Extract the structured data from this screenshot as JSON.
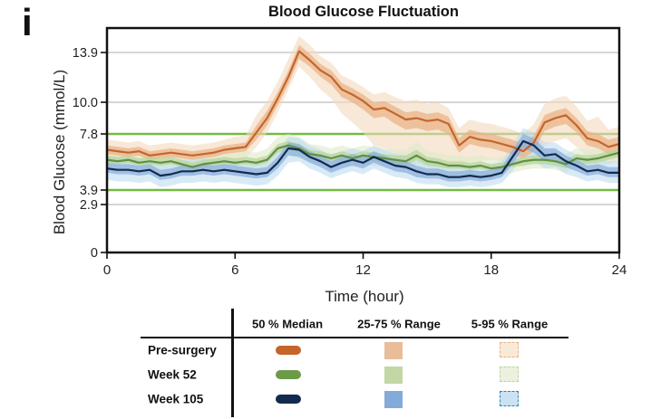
{
  "panel_label": "i",
  "chart_data": {
    "type": "line",
    "title": "Blood Glucose Fluctuation",
    "xlabel": "Time (hour)",
    "ylabel": "Blood Glucose (mmol/L)",
    "xlim": [
      0,
      24
    ],
    "x_ticks": [
      0,
      6,
      12,
      18,
      24
    ],
    "x_tick_labels": [
      "0",
      "6",
      "12",
      "18",
      "24"
    ],
    "y_ticks": [
      13.9,
      10.0,
      7.8,
      3.9,
      2.9,
      0
    ],
    "y_tick_labels": [
      "13.9",
      "10.0",
      "7.8",
      "3.9",
      "2.9",
      "0"
    ],
    "grid_values": [
      13.9,
      10.0,
      2.9
    ],
    "grid_color": "#c8c8c8",
    "target_lines": {
      "values": [
        7.8,
        3.9
      ],
      "color": "#72bb42"
    },
    "frame_color": "#111111",
    "x": [
      0,
      0.5,
      1,
      1.5,
      2,
      2.5,
      3,
      3.5,
      4,
      4.5,
      5,
      5.5,
      6,
      6.5,
      7,
      7.5,
      8,
      8.5,
      9,
      9.5,
      10,
      10.5,
      11,
      11.5,
      12,
      12.5,
      13,
      13.5,
      14,
      14.5,
      15,
      15.5,
      16,
      16.5,
      17,
      17.5,
      18,
      18.5,
      19,
      19.5,
      20,
      20.5,
      21,
      21.5,
      22,
      22.5,
      23,
      23.5,
      24
    ],
    "series": [
      {
        "name": "Pre-surgery",
        "line_color": "#c4662a",
        "band25_color": "#eab287",
        "band5_color": "#f4d9bd",
        "median": [
          6.7,
          6.6,
          6.5,
          6.6,
          6.3,
          6.4,
          6.5,
          6.4,
          6.3,
          6.4,
          6.5,
          6.7,
          6.8,
          6.9,
          7.9,
          8.9,
          10.3,
          12.0,
          14.0,
          13.3,
          12.5,
          12.0,
          11.0,
          10.6,
          10.1,
          9.5,
          9.6,
          9.2,
          8.8,
          8.9,
          8.7,
          8.8,
          8.5,
          7.0,
          7.6,
          7.4,
          7.3,
          7.1,
          6.9,
          6.6,
          7.2,
          8.6,
          8.9,
          9.1,
          8.4,
          7.5,
          7.3,
          6.9,
          7.1
        ],
        "p25": [
          6.4,
          6.3,
          6.2,
          6.3,
          6.0,
          6.1,
          6.2,
          6.1,
          6.0,
          6.1,
          6.2,
          6.4,
          6.5,
          6.6,
          7.4,
          8.4,
          9.8,
          11.4,
          13.4,
          12.8,
          12.0,
          11.4,
          10.4,
          10.0,
          9.5,
          8.9,
          9.0,
          8.5,
          8.1,
          8.2,
          8.0,
          8.1,
          7.8,
          6.5,
          7.1,
          6.9,
          6.8,
          6.6,
          6.4,
          6.1,
          6.6,
          8.0,
          8.3,
          8.5,
          7.9,
          7.0,
          6.8,
          6.4,
          6.6
        ],
        "p75": [
          7.0,
          6.9,
          6.8,
          6.9,
          6.6,
          6.7,
          6.8,
          6.7,
          6.6,
          6.7,
          6.8,
          7.0,
          7.1,
          7.2,
          8.4,
          9.4,
          10.8,
          12.5,
          14.5,
          13.8,
          13.0,
          12.5,
          11.5,
          11.1,
          10.6,
          10.0,
          10.1,
          9.7,
          9.3,
          9.4,
          9.2,
          9.3,
          9.0,
          7.5,
          8.1,
          7.9,
          7.8,
          7.6,
          7.4,
          7.1,
          7.7,
          9.1,
          9.4,
          9.6,
          8.9,
          8.0,
          7.8,
          7.4,
          7.6
        ],
        "p5": [
          5.9,
          5.8,
          5.7,
          5.8,
          5.5,
          5.6,
          5.7,
          5.6,
          5.5,
          5.6,
          5.7,
          5.9,
          6.0,
          6.1,
          6.9,
          7.9,
          9.3,
          11.0,
          12.8,
          12.0,
          11.0,
          10.3,
          9.2,
          8.6,
          7.9,
          7.0,
          6.8,
          6.3,
          5.9,
          5.8,
          5.6,
          5.6,
          5.5,
          5.5,
          5.9,
          5.9,
          6.0,
          5.9,
          5.7,
          5.5,
          5.9,
          7.0,
          7.3,
          7.5,
          6.9,
          6.2,
          6.0,
          5.7,
          5.9
        ],
        "p95": [
          7.4,
          7.3,
          7.2,
          7.3,
          7.0,
          7.1,
          7.2,
          7.1,
          7.0,
          7.1,
          7.2,
          7.4,
          7.6,
          7.7,
          9.1,
          10.1,
          11.6,
          13.4,
          15.2,
          14.5,
          13.6,
          13.1,
          12.1,
          11.7,
          11.2,
          10.6,
          10.8,
          10.4,
          10.1,
          10.2,
          9.9,
          10.0,
          9.6,
          8.2,
          8.8,
          8.6,
          8.5,
          8.3,
          8.1,
          7.8,
          8.5,
          9.9,
          10.3,
          10.5,
          9.7,
          8.7,
          9.0,
          8.1,
          8.3
        ]
      },
      {
        "name": "Week 52",
        "line_color": "#5e9142",
        "band25_color": "#b9d49b",
        "band5_color": "#deebc9",
        "median": [
          6.0,
          5.9,
          6.0,
          5.8,
          5.9,
          5.8,
          5.9,
          5.7,
          5.5,
          5.7,
          5.8,
          5.9,
          5.8,
          5.9,
          5.8,
          6.0,
          6.8,
          7.0,
          6.8,
          6.4,
          6.3,
          6.1,
          6.3,
          6.1,
          6.3,
          6.2,
          6.1,
          6.0,
          5.9,
          6.3,
          5.9,
          5.8,
          5.6,
          5.6,
          5.5,
          5.6,
          5.4,
          5.5,
          5.7,
          5.9,
          6.0,
          6.0,
          5.9,
          5.7,
          6.1,
          6.0,
          6.1,
          6.3,
          6.5
        ],
        "p25": [
          5.8,
          5.7,
          5.8,
          5.6,
          5.7,
          5.6,
          5.7,
          5.5,
          5.3,
          5.5,
          5.6,
          5.7,
          5.6,
          5.7,
          5.6,
          5.8,
          6.5,
          6.7,
          6.5,
          6.1,
          6.0,
          5.9,
          6.0,
          5.9,
          6.0,
          5.9,
          5.8,
          5.7,
          5.6,
          6.0,
          5.6,
          5.5,
          5.4,
          5.4,
          5.3,
          5.4,
          5.2,
          5.3,
          5.5,
          5.6,
          5.7,
          5.7,
          5.6,
          5.4,
          5.8,
          5.7,
          5.8,
          6.0,
          6.2
        ],
        "p75": [
          6.3,
          6.2,
          6.3,
          6.1,
          6.2,
          6.1,
          6.2,
          6.0,
          5.8,
          6.0,
          6.1,
          6.2,
          6.1,
          6.2,
          6.1,
          6.3,
          7.1,
          7.3,
          7.1,
          6.7,
          6.6,
          6.4,
          6.6,
          6.4,
          6.6,
          6.5,
          6.4,
          6.3,
          6.3,
          6.7,
          6.2,
          6.1,
          5.9,
          5.9,
          5.8,
          5.9,
          5.7,
          5.8,
          6.0,
          6.2,
          6.3,
          6.3,
          6.2,
          6.0,
          6.4,
          6.3,
          6.4,
          6.6,
          6.8
        ],
        "p5": [
          5.4,
          5.3,
          5.4,
          5.2,
          5.3,
          5.2,
          5.3,
          5.1,
          4.9,
          5.1,
          5.2,
          5.3,
          5.2,
          5.3,
          5.2,
          5.4,
          6.1,
          6.3,
          6.1,
          5.8,
          5.7,
          5.5,
          5.7,
          5.5,
          5.7,
          5.6,
          5.5,
          5.4,
          5.3,
          5.7,
          5.3,
          5.2,
          5.0,
          5.0,
          4.9,
          5.0,
          4.8,
          4.9,
          5.1,
          5.3,
          5.4,
          5.4,
          5.3,
          5.1,
          5.5,
          5.4,
          5.5,
          5.7,
          5.9
        ],
        "p95": [
          6.7,
          6.6,
          6.7,
          6.5,
          6.6,
          6.5,
          6.6,
          6.4,
          6.2,
          6.4,
          6.5,
          6.6,
          6.5,
          6.6,
          6.5,
          6.8,
          7.6,
          7.8,
          7.6,
          7.1,
          7.0,
          6.8,
          7.0,
          6.8,
          7.0,
          6.9,
          6.8,
          6.7,
          6.7,
          7.3,
          6.6,
          6.5,
          6.3,
          6.3,
          6.2,
          6.3,
          6.1,
          6.2,
          6.4,
          6.6,
          6.7,
          6.7,
          6.6,
          6.4,
          6.8,
          6.7,
          6.8,
          7.0,
          7.2
        ]
      },
      {
        "name": "Week 105",
        "line_color": "#152a4d",
        "band25_color": "#89afdc",
        "band5_color": "#bedcf0",
        "median": [
          5.4,
          5.3,
          5.3,
          5.2,
          5.3,
          4.9,
          5.0,
          5.2,
          5.2,
          5.3,
          5.2,
          5.3,
          5.2,
          5.1,
          5.0,
          5.1,
          5.8,
          6.8,
          6.7,
          6.2,
          5.9,
          5.5,
          5.8,
          6.0,
          5.8,
          6.2,
          5.9,
          5.6,
          5.5,
          5.2,
          5.0,
          5.0,
          4.8,
          4.8,
          4.9,
          4.8,
          4.9,
          5.1,
          6.2,
          7.3,
          7.0,
          6.3,
          6.4,
          5.9,
          5.6,
          5.2,
          5.3,
          5.1,
          5.1
        ],
        "p25": [
          5.1,
          5.0,
          5.0,
          4.9,
          5.0,
          4.6,
          4.7,
          4.9,
          4.9,
          5.0,
          4.9,
          5.0,
          4.9,
          4.8,
          4.7,
          4.8,
          5.4,
          6.3,
          6.2,
          5.8,
          5.5,
          5.1,
          5.4,
          5.6,
          5.4,
          5.8,
          5.5,
          5.2,
          5.1,
          4.8,
          4.7,
          4.7,
          4.5,
          4.5,
          4.6,
          4.5,
          4.6,
          4.8,
          5.7,
          6.8,
          6.5,
          5.9,
          6.0,
          5.5,
          5.2,
          4.9,
          5.0,
          4.8,
          4.8
        ],
        "p75": [
          5.8,
          5.7,
          5.7,
          5.6,
          5.7,
          5.3,
          5.4,
          5.6,
          5.6,
          5.7,
          5.6,
          5.7,
          5.6,
          5.5,
          5.4,
          5.5,
          6.2,
          7.2,
          7.1,
          6.6,
          6.3,
          5.9,
          6.2,
          6.4,
          6.2,
          6.6,
          6.3,
          6.0,
          5.9,
          5.6,
          5.4,
          5.4,
          5.2,
          5.2,
          5.3,
          5.2,
          5.3,
          5.5,
          6.7,
          7.8,
          7.5,
          6.8,
          6.8,
          6.3,
          6.0,
          5.6,
          5.7,
          5.5,
          5.5
        ],
        "p5": [
          4.6,
          4.5,
          4.5,
          4.4,
          4.5,
          4.1,
          4.2,
          4.4,
          4.4,
          4.5,
          4.4,
          4.5,
          4.4,
          4.3,
          4.2,
          4.3,
          4.9,
          5.8,
          5.9,
          5.4,
          5.1,
          4.7,
          5.0,
          5.2,
          5.0,
          5.4,
          5.1,
          4.8,
          4.7,
          4.4,
          4.3,
          4.3,
          4.1,
          4.1,
          4.2,
          4.1,
          4.2,
          4.4,
          5.2,
          6.3,
          6.0,
          5.4,
          5.5,
          5.0,
          4.8,
          4.5,
          4.6,
          4.4,
          4.4
        ],
        "p95": [
          6.2,
          6.1,
          6.1,
          6.0,
          6.1,
          5.7,
          5.8,
          6.0,
          6.0,
          6.1,
          6.0,
          6.1,
          6.0,
          5.9,
          5.8,
          5.9,
          6.6,
          7.6,
          7.5,
          7.0,
          6.7,
          6.3,
          6.6,
          6.8,
          6.6,
          7.0,
          6.7,
          6.4,
          6.3,
          6.0,
          5.8,
          5.8,
          5.6,
          5.6,
          5.7,
          5.6,
          5.7,
          5.9,
          7.1,
          8.2,
          7.9,
          7.2,
          7.2,
          6.7,
          6.4,
          6.0,
          6.1,
          5.9,
          5.9
        ]
      }
    ]
  },
  "legend": {
    "columns": [
      "50 % Median",
      "25-75 % Range",
      "5-95 % Range"
    ],
    "rows": [
      {
        "label": "Pre-surgery",
        "median_color": "#c4662a",
        "mid_color": "#e9bd97",
        "pale_fill": "#f8ead9",
        "pale_border": "#eab287"
      },
      {
        "label": "Week 52",
        "median_color": "#6b9b47",
        "mid_color": "#c2d7a5",
        "pale_fill": "#ecf1df",
        "pale_border": "#b9d49b"
      },
      {
        "label": "Week 105",
        "median_color": "#122b4e",
        "mid_color": "#83abd9",
        "pale_fill": "#cbe2f3",
        "pale_border": "#2e86ba"
      }
    ]
  }
}
